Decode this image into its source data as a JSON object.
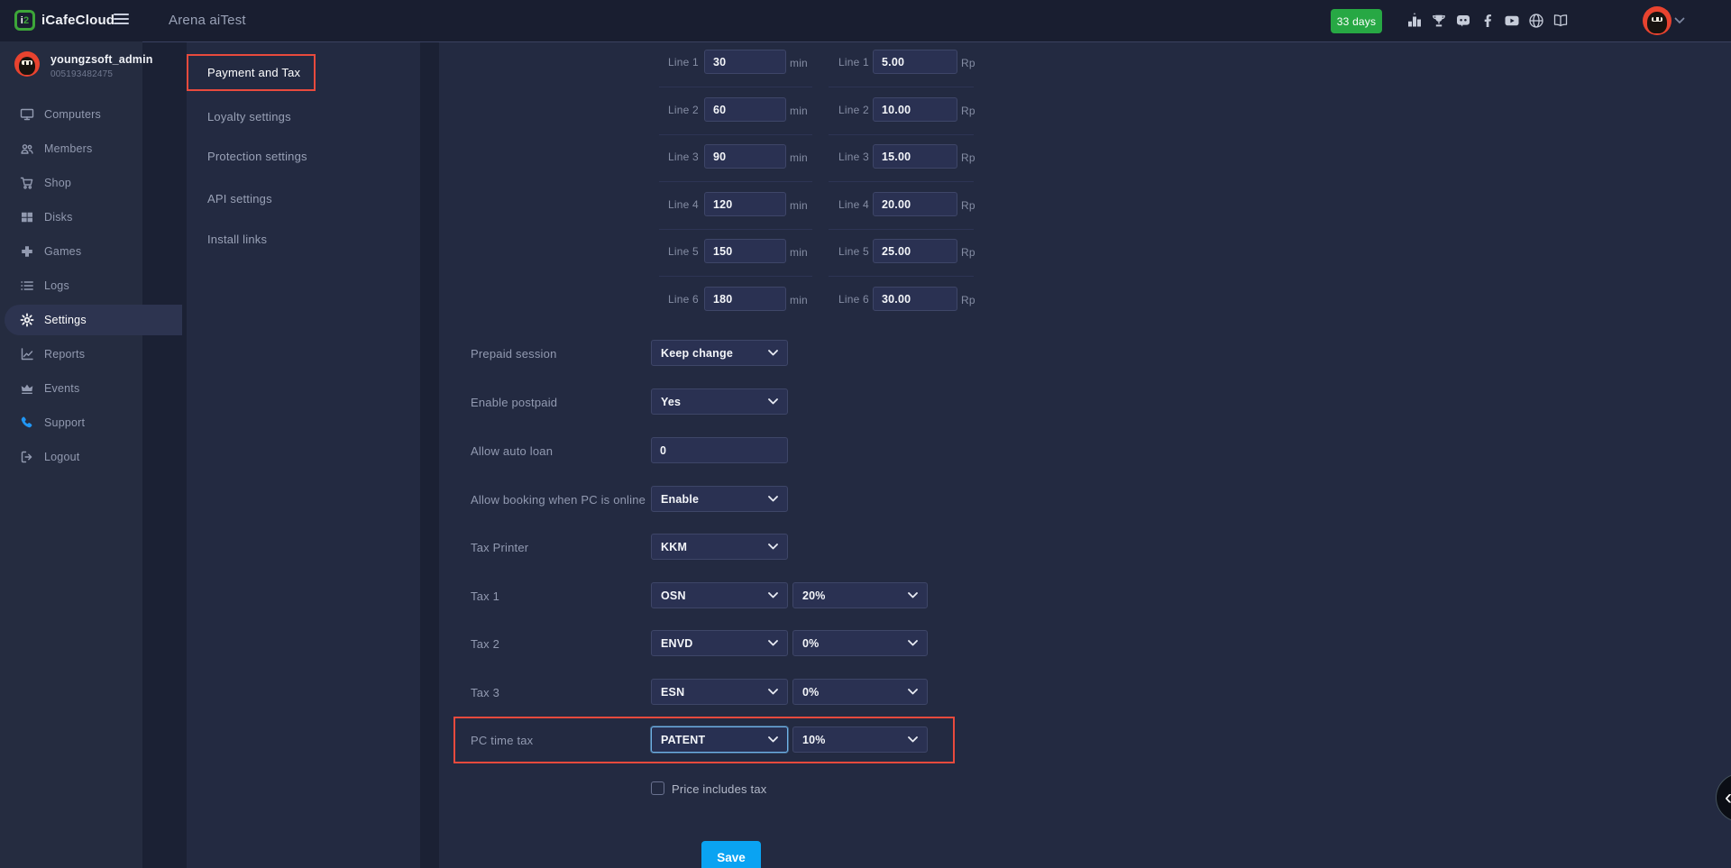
{
  "colors": {
    "accent_green": "#27a844",
    "highlight_red": "#e84a3d",
    "save_blue": "#0aa3f2",
    "avatar_red": "#e8432f",
    "logo_green": "#3da639",
    "support_blue": "#2196f3"
  },
  "topbar": {
    "logo_text": "iCafeCloud",
    "page_title": "Arena aiTest",
    "badge_label": "33 days",
    "icons": [
      "ranking-icon",
      "trophy-icon",
      "discord-icon",
      "facebook-icon",
      "youtube-icon",
      "globe-icon",
      "guide-book-icon"
    ]
  },
  "sidebar": {
    "user": {
      "name": "youngzsoft_admin",
      "id": "005193482475"
    },
    "items": [
      {
        "label": "Computers",
        "icon": "monitor-icon"
      },
      {
        "label": "Members",
        "icon": "members-icon"
      },
      {
        "label": "Shop",
        "icon": "cart-icon"
      },
      {
        "label": "Disks",
        "icon": "disks-icon"
      },
      {
        "label": "Games",
        "icon": "gamepad-icon"
      },
      {
        "label": "Logs",
        "icon": "list-icon"
      },
      {
        "label": "Settings",
        "icon": "gear-icon",
        "active": true
      },
      {
        "label": "Reports",
        "icon": "chart-icon"
      },
      {
        "label": "Events",
        "icon": "crown-icon"
      },
      {
        "label": "Support",
        "icon": "phone-icon",
        "icon_color": "#2196f3"
      },
      {
        "label": "Logout",
        "icon": "logout-icon"
      }
    ]
  },
  "settings_nav": {
    "items": [
      {
        "label": "Payment and Tax",
        "active": true,
        "highlighted": true
      },
      {
        "label": "Loyalty settings"
      },
      {
        "label": "Protection settings"
      },
      {
        "label": "API settings"
      },
      {
        "label": "Install links"
      }
    ]
  },
  "form": {
    "minutes_suffix": "min",
    "price_suffix": "Rp",
    "lines": [
      {
        "label": "Line 1",
        "minutes": "30",
        "price": "5.00"
      },
      {
        "label": "Line 2",
        "minutes": "60",
        "price": "10.00"
      },
      {
        "label": "Line 3",
        "minutes": "90",
        "price": "15.00"
      },
      {
        "label": "Line 4",
        "minutes": "120",
        "price": "20.00"
      },
      {
        "label": "Line 5",
        "minutes": "150",
        "price": "25.00"
      },
      {
        "label": "Line 6",
        "minutes": "180",
        "price": "30.00"
      }
    ],
    "fields": [
      {
        "label": "Prepaid session",
        "type": "select",
        "value": "Keep change"
      },
      {
        "label": "Enable postpaid",
        "type": "select",
        "value": "Yes"
      },
      {
        "label": "Allow auto loan",
        "type": "input",
        "value": "0"
      },
      {
        "label": "Allow booking when PC is online",
        "type": "select",
        "value": "Enable"
      },
      {
        "label": "Tax Printer",
        "type": "select",
        "value": "KKM"
      },
      {
        "label": "Tax 1",
        "type": "select",
        "value": "OSN",
        "value2": "20%"
      },
      {
        "label": "Tax 2",
        "type": "select",
        "value": "ENVD",
        "value2": "0%"
      },
      {
        "label": "Tax 3",
        "type": "select",
        "value": "ESN",
        "value2": "0%"
      },
      {
        "label": "PC time tax",
        "type": "select",
        "value": "PATENT",
        "value2": "10%",
        "highlighted": true,
        "focused": true
      }
    ],
    "checkbox_label": "Price includes tax",
    "checkbox_checked": false,
    "save_label": "Save"
  },
  "floating_button": {
    "icon": "chevron-left-icon"
  }
}
